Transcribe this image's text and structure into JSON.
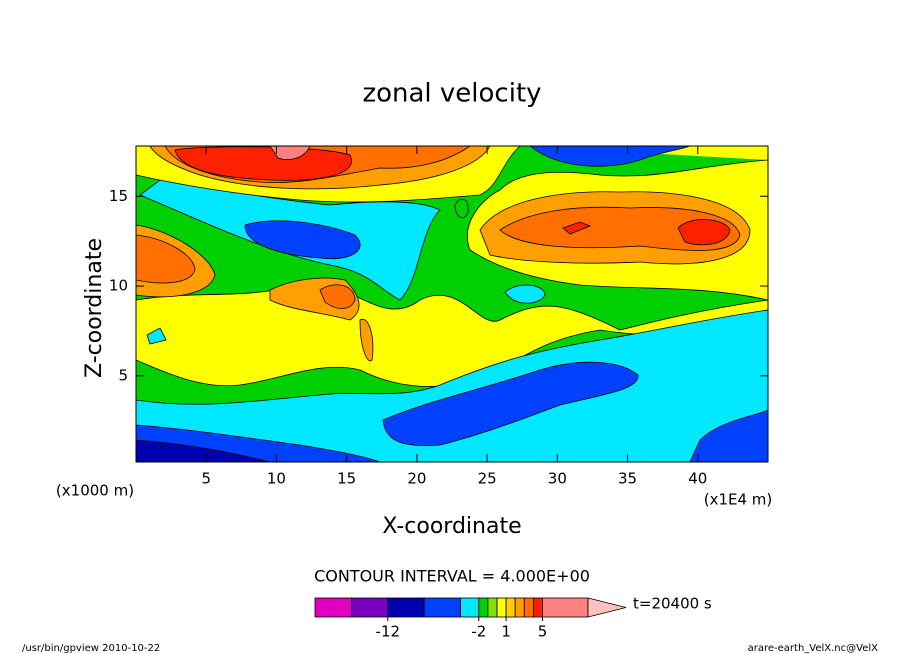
{
  "chart_data": {
    "type": "contour",
    "title": "zonal velocity",
    "x_label": "X-coordinate",
    "y_label": "Z-coordinate",
    "x_unit": "(x1E4 m)",
    "y_unit": "(x1000 m)",
    "xlim": [
      0,
      45
    ],
    "xticks": [
      5,
      10,
      15,
      20,
      25,
      30,
      35,
      40
    ],
    "ylim": [
      0.2,
      17.8
    ],
    "yticks": [
      5,
      10,
      15
    ],
    "contour_interval": "CONTOUR INTERVAL = 4.000E+00",
    "time_label": "t=20400 s",
    "colorbar": {
      "boundaries": [
        -20,
        -16,
        -12,
        -8,
        -4,
        -2,
        -1,
        0,
        1,
        2,
        3,
        4,
        5,
        10
      ],
      "colors": [
        "#e000c0",
        "#7a00c0",
        "#0000b0",
        "#0040ff",
        "#00e8ff",
        "#00d000",
        "#80e000",
        "#ffff00",
        "#ffd000",
        "#ffa000",
        "#ff7000",
        "#ff2000",
        "#ff8080"
      ],
      "extend_color": "#ffc0c0",
      "ticks": [
        -12,
        -2,
        1,
        5
      ]
    },
    "footer_left": "/usr/bin/gpview  2010-10-22",
    "footer_right": "arare-earth_VelX.nc@VelX"
  }
}
